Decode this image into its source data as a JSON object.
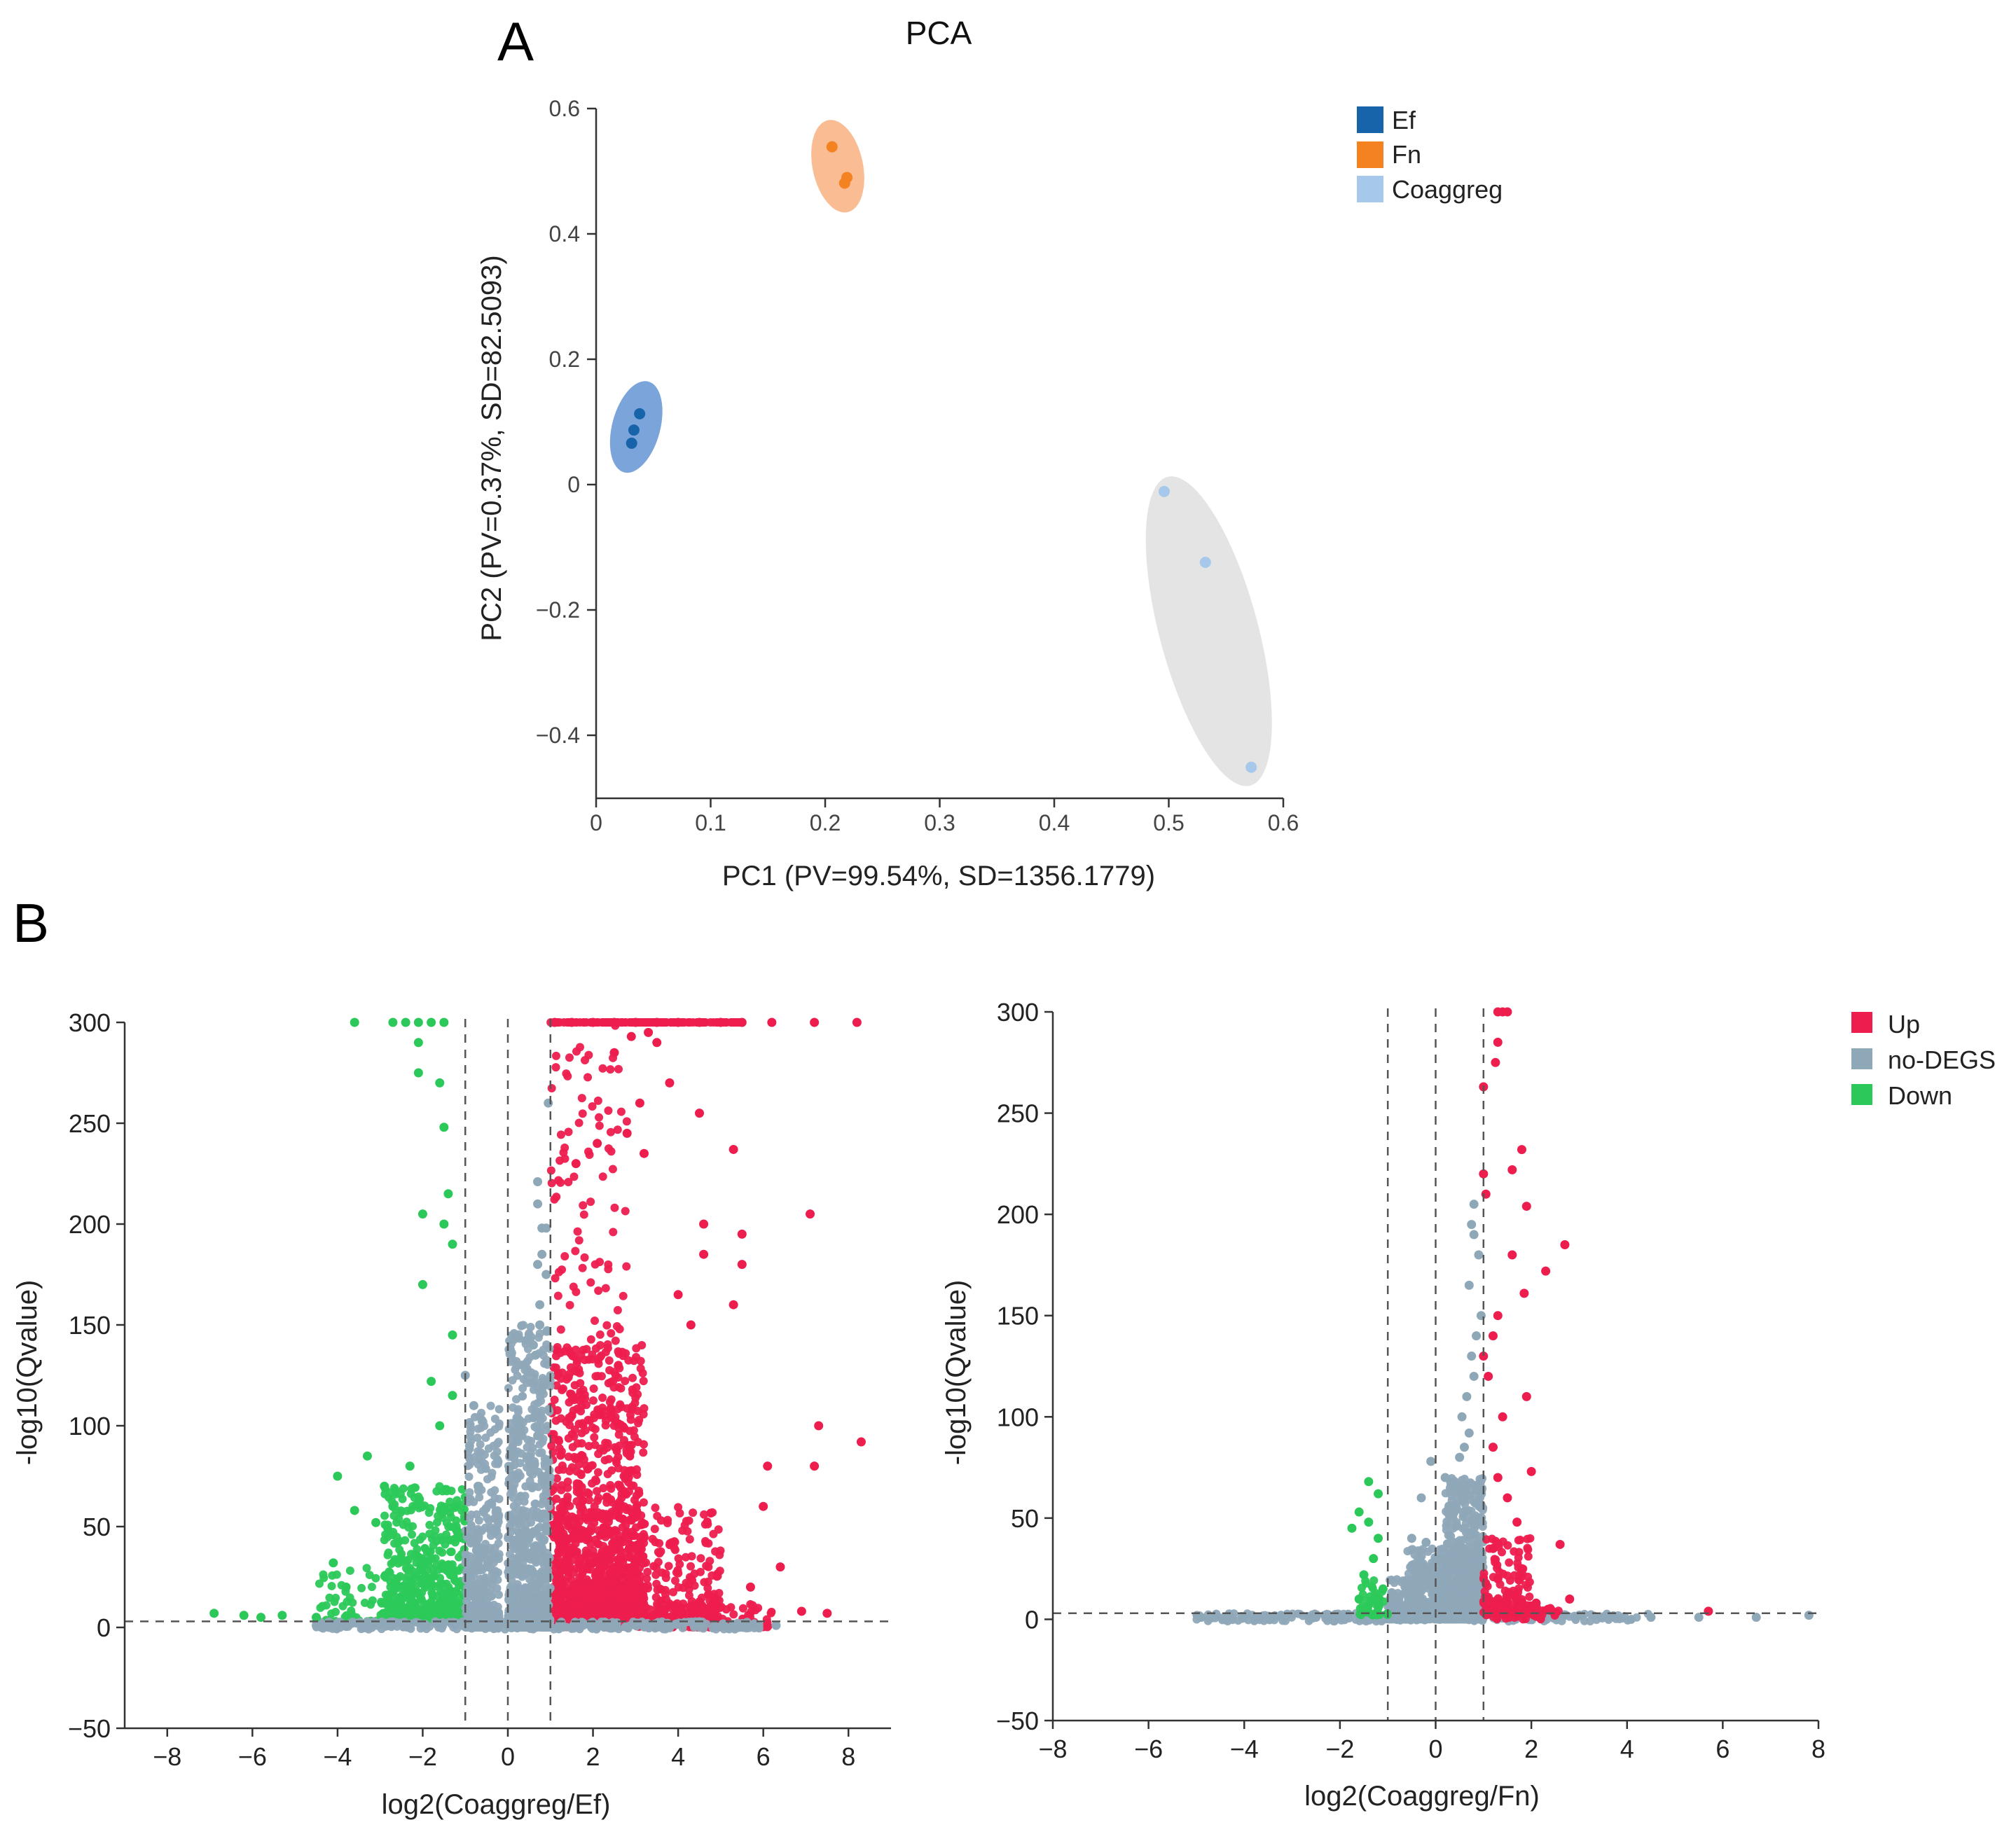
{
  "figure": {
    "panel_a_letter": "A",
    "panel_b_letter": "B"
  },
  "colors": {
    "ef": "#1764ab",
    "fn": "#f58220",
    "coaggreg": "#a6c8ea",
    "ef_ellipse": "#6d9bd6",
    "fn_ellipse": "#f8b587",
    "coaggreg_ellipse": "#e1e1e1",
    "up": "#ed1e4e",
    "nodegs": "#8fa8b8",
    "down": "#2cc95a"
  },
  "chart_data": [
    {
      "id": "pca",
      "type": "scatter",
      "title": "PCA",
      "xlabel": "PC1 (PV=99.54%, SD=1356.1779)",
      "ylabel": "PC2 (PV=0.37%, SD=82.5093)",
      "xlim": [
        0,
        0.6
      ],
      "ylim": [
        -0.5,
        0.6
      ],
      "xticks": [
        0,
        0.1,
        0.2,
        0.3,
        0.4,
        0.5,
        0.6
      ],
      "xticklabels": [
        "0",
        "0.1",
        "0.2",
        "0.3",
        "0.4",
        "0.5",
        "0.6"
      ],
      "yticks": [
        -0.4,
        -0.2,
        0,
        0.2,
        0.4,
        0.6
      ],
      "yticklabels": [
        "−0.4",
        "−0.2",
        "0",
        "0.2",
        "0.4",
        "0.6"
      ],
      "legend_position": "top-right",
      "series": [
        {
          "name": "Ef",
          "points": [
            [
              0.031,
              0.066
            ],
            [
              0.033,
              0.087
            ],
            [
              0.038,
              0.113
            ]
          ],
          "ellipse": {
            "center": [
              0.035,
              0.092
            ],
            "rx_data": 0.021,
            "ry_data": 0.075,
            "rotate_deg": 15
          }
        },
        {
          "name": "Fn",
          "points": [
            [
              0.206,
              0.539
            ],
            [
              0.217,
              0.481
            ],
            [
              0.219,
              0.49
            ]
          ],
          "ellipse": {
            "center": [
              0.211,
              0.508
            ],
            "rx_data": 0.022,
            "ry_data": 0.075,
            "rotate_deg": -12
          }
        },
        {
          "name": "Coaggreg",
          "points": [
            [
              0.496,
              -0.011
            ],
            [
              0.532,
              -0.124
            ],
            [
              0.572,
              -0.451
            ]
          ],
          "ellipse": {
            "center": [
              0.535,
              -0.234
            ],
            "rx_data": 0.043,
            "ry_data": 0.255,
            "rotate_deg": -15
          }
        }
      ]
    },
    {
      "id": "volcano_ef",
      "type": "scatter",
      "xlabel": "log2(Coaggreg/Ef)",
      "ylabel": "-log10(Qvalue)",
      "xlim": [
        -9,
        9
      ],
      "ylim": [
        -50,
        300
      ],
      "xticks": [
        -8,
        -6,
        -4,
        -2,
        0,
        2,
        4,
        6,
        8
      ],
      "xticklabels": [
        "−8",
        "−6",
        "−4",
        "−2",
        "0",
        "2",
        "4",
        "6",
        "8"
      ],
      "yticks": [
        -50,
        0,
        50,
        100,
        150,
        200,
        250,
        300
      ],
      "yticklabels": [
        "−50",
        "0",
        "50",
        "100",
        "150",
        "200",
        "250",
        "300"
      ],
      "vlines": [
        -1,
        0,
        1
      ],
      "hline": 3,
      "series": [
        {
          "name": "Up",
          "points": [
            [
              1.1,
              300
            ],
            [
              1.5,
              300
            ],
            [
              2,
              300
            ],
            [
              2.5,
              300
            ],
            [
              3,
              300
            ],
            [
              3.5,
              300
            ],
            [
              4,
              300
            ],
            [
              4.5,
              300
            ],
            [
              5,
              300
            ],
            [
              5.5,
              300
            ],
            [
              6.2,
              300
            ],
            [
              7.2,
              300
            ],
            [
              8.2,
              300
            ],
            [
              7.1,
              205
            ],
            [
              7.3,
              100
            ],
            [
              8.3,
              92
            ],
            [
              7.2,
              80
            ],
            [
              6.1,
              80
            ],
            [
              5.3,
              237
            ],
            [
              4.5,
              255
            ],
            [
              4.6,
              200
            ],
            [
              5.5,
              195
            ],
            [
              4.6,
              185
            ],
            [
              5.5,
              180
            ],
            [
              4,
              165
            ],
            [
              4.3,
              150
            ],
            [
              2.5,
              285
            ],
            [
              2.9,
              293
            ],
            [
              3.3,
              295
            ],
            [
              3.5,
              290
            ],
            [
              3.1,
              260
            ],
            [
              3.8,
              270
            ],
            [
              2.8,
              245
            ],
            [
              3.2,
              235
            ],
            [
              2.1,
              240
            ],
            [
              1.6,
              230
            ],
            [
              5.3,
              160
            ],
            [
              6,
              60
            ],
            [
              6.4,
              30
            ],
            [
              5.7,
              20
            ],
            [
              6.9,
              8
            ],
            [
              7.5,
              7
            ]
          ]
        },
        {
          "name": "Down",
          "points": [
            [
              -3.6,
              300
            ],
            [
              -2.7,
              300
            ],
            [
              -2.4,
              300
            ],
            [
              -2.1,
              300
            ],
            [
              -1.8,
              300
            ],
            [
              -1.5,
              300
            ],
            [
              -2.1,
              290
            ],
            [
              -2.1,
              275
            ],
            [
              -1.6,
              270
            ],
            [
              -1.5,
              248
            ],
            [
              -1.4,
              215
            ],
            [
              -2,
              205
            ],
            [
              -1.5,
              200
            ],
            [
              -1.3,
              190
            ],
            [
              -2,
              170
            ],
            [
              -1.3,
              145
            ],
            [
              -4,
              75
            ],
            [
              -3.3,
              85
            ],
            [
              -2.9,
              70
            ],
            [
              -2.3,
              80
            ],
            [
              -2.7,
              60
            ],
            [
              -3.6,
              58
            ],
            [
              -3.1,
              52
            ],
            [
              -4.1,
              32
            ],
            [
              -3.8,
              20
            ],
            [
              -5.3,
              6
            ],
            [
              -6.9,
              7
            ],
            [
              -6.2,
              6
            ],
            [
              -5.8,
              5
            ],
            [
              -4.5,
              5
            ],
            [
              -1.8,
              122
            ],
            [
              -1.3,
              115
            ],
            [
              -1.6,
              100
            ]
          ]
        },
        {
          "name": "no-DEGS",
          "points": [
            [
              -1,
              125
            ],
            [
              -0.8,
              110
            ],
            [
              -0.9,
              90
            ],
            [
              -0.7,
              70
            ],
            [
              0.7,
              210
            ],
            [
              0.8,
              185
            ],
            [
              0.9,
              175
            ],
            [
              0.75,
              150
            ],
            [
              0.6,
              140
            ],
            [
              0.85,
              120
            ],
            [
              0.7,
              95
            ],
            [
              0.3,
              65
            ],
            [
              0.5,
              45
            ],
            [
              0.2,
              30
            ],
            [
              0.7,
              221
            ],
            [
              0.9,
              198
            ],
            [
              0.75,
              160
            ],
            [
              0.65,
              135
            ],
            [
              0.95,
              260
            ],
            [
              0.8,
              198
            ],
            [
              0.7,
              180
            ],
            [
              0.6,
              104
            ],
            [
              0.8,
              75
            ],
            [
              6.3,
              1
            ],
            [
              -4.5,
              1
            ],
            [
              -3.8,
              0.5
            ],
            [
              3,
              1
            ],
            [
              4.5,
              1.5
            ]
          ]
        }
      ]
    },
    {
      "id": "volcano_fn",
      "type": "scatter",
      "xlabel": "log2(Coaggreg/Fn)",
      "ylabel": "-log10(Qvalue)",
      "xlim": [
        -8,
        8
      ],
      "ylim": [
        -50,
        300
      ],
      "xticks": [
        -8,
        -6,
        -4,
        -2,
        0,
        2,
        4,
        6,
        8
      ],
      "xticklabels": [
        "−8",
        "−6",
        "−4",
        "−2",
        "0",
        "2",
        "4",
        "6",
        "8"
      ],
      "yticks": [
        -50,
        0,
        50,
        100,
        150,
        200,
        250,
        300
      ],
      "yticklabels": [
        "−50",
        "0",
        "50",
        "100",
        "150",
        "200",
        "250",
        "300"
      ],
      "vlines": [
        -1,
        0,
        1
      ],
      "hline": 3,
      "legend_position": "top-right",
      "legend": [
        "Up",
        "no-DEGS",
        "Down"
      ],
      "series": [
        {
          "name": "Up",
          "points": [
            [
              1.3,
              300
            ],
            [
              1.4,
              300
            ],
            [
              1.5,
              300
            ],
            [
              1.3,
              285
            ],
            [
              1.25,
              275
            ],
            [
              1.0,
              263
            ],
            [
              1.8,
              232
            ],
            [
              1.6,
              222
            ],
            [
              1.0,
              220
            ],
            [
              1.05,
              210
            ],
            [
              1.9,
              204
            ],
            [
              2.7,
              185
            ],
            [
              1.6,
              180
            ],
            [
              2.3,
              172
            ],
            [
              1.85,
              161
            ],
            [
              1.3,
              150
            ],
            [
              1.2,
              140
            ],
            [
              1.0,
              130
            ],
            [
              1.1,
              120
            ],
            [
              1.9,
              110
            ],
            [
              1.4,
              100
            ],
            [
              1.2,
              85
            ],
            [
              2.0,
              73
            ],
            [
              1.3,
              70
            ],
            [
              1.5,
              60
            ],
            [
              1.7,
              48
            ],
            [
              2.6,
              37
            ],
            [
              1.8,
              25
            ],
            [
              1.3,
              20
            ],
            [
              2.8,
              10
            ],
            [
              2.1,
              8
            ],
            [
              5.7,
              4
            ],
            [
              1.5,
              12
            ],
            [
              1.2,
              35
            ]
          ]
        },
        {
          "name": "no-DEGS",
          "points": [
            [
              0.8,
              205
            ],
            [
              0.75,
              195
            ],
            [
              0.8,
              190
            ],
            [
              0.9,
              180
            ],
            [
              0.7,
              165
            ],
            [
              0.95,
              150
            ],
            [
              0.85,
              140
            ],
            [
              0.75,
              130
            ],
            [
              0.8,
              120
            ],
            [
              0.65,
              110
            ],
            [
              0.55,
              100
            ],
            [
              0.7,
              92
            ],
            [
              0.6,
              85
            ],
            [
              0.5,
              80
            ],
            [
              -0.1,
              78
            ],
            [
              0.2,
              70
            ],
            [
              -0.3,
              60
            ],
            [
              -0.5,
              40
            ],
            [
              -0.2,
              38
            ],
            [
              0.1,
              30
            ],
            [
              -0.4,
              25
            ],
            [
              0.3,
              55
            ],
            [
              0.5,
              65
            ],
            [
              -0.6,
              15
            ],
            [
              7.8,
              2
            ],
            [
              6.7,
              1
            ],
            [
              -4.9,
              1
            ],
            [
              -4,
              1
            ],
            [
              4.5,
              1
            ],
            [
              5.5,
              1
            ],
            [
              -2.5,
              1
            ],
            [
              3,
              2
            ]
          ]
        },
        {
          "name": "Down",
          "points": [
            [
              -1.4,
              68
            ],
            [
              -1.2,
              62
            ],
            [
              -1.6,
              53
            ],
            [
              -1.4,
              48
            ],
            [
              -1.2,
              40
            ],
            [
              -1.75,
              45
            ],
            [
              -1.3,
              30
            ],
            [
              -1.5,
              22
            ],
            [
              -1.1,
              15
            ],
            [
              -1.6,
              10
            ],
            [
              -1.2,
              8
            ]
          ]
        }
      ]
    }
  ]
}
